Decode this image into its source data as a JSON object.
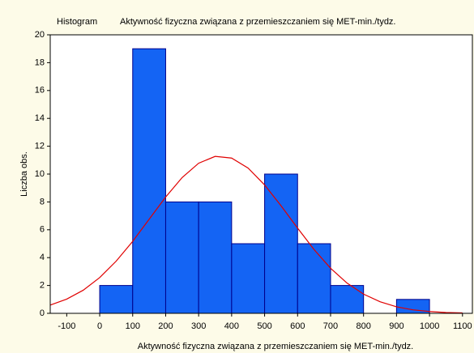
{
  "chart_data": {
    "type": "histogram",
    "label": "Histogram",
    "title": "Aktywność fizyczna związana z przemieszczaniem się MET-min./tydz.",
    "xlabel": "Aktywność fizyczna związana z przemieszczaniem się MET-min./tydz.",
    "ylabel": "Liczba obs.",
    "bins": [
      0,
      100,
      200,
      300,
      400,
      500,
      600,
      700,
      800,
      900,
      1000
    ],
    "values": [
      2,
      19,
      8,
      8,
      5,
      10,
      5,
      2,
      0,
      1
    ],
    "color": "#1464f4",
    "edge_color": "#00008b",
    "curve": {
      "color": "#e00000",
      "x": [
        -150,
        -100,
        -50,
        0,
        50,
        100,
        150,
        200,
        250,
        300,
        350,
        400,
        450,
        500,
        550,
        600,
        650,
        700,
        750,
        800,
        850,
        900,
        950,
        1000,
        1050,
        1100
      ],
      "y": [
        0.59,
        1.02,
        1.66,
        2.57,
        3.75,
        5.17,
        6.76,
        8.35,
        9.75,
        10.78,
        11.27,
        11.15,
        10.43,
        9.22,
        7.72,
        6.12,
        4.58,
        3.24,
        2.17,
        1.38,
        0.83,
        0.47,
        0.25,
        0.13,
        0.06,
        0.03
      ]
    },
    "xlim": [
      -150,
      1130
    ],
    "ylim": [
      0,
      20
    ],
    "xticks": [
      -100,
      0,
      100,
      200,
      300,
      400,
      500,
      600,
      700,
      800,
      900,
      1000,
      1100
    ],
    "yticks": [
      0,
      2,
      4,
      6,
      8,
      10,
      12,
      14,
      16,
      18,
      20
    ]
  }
}
